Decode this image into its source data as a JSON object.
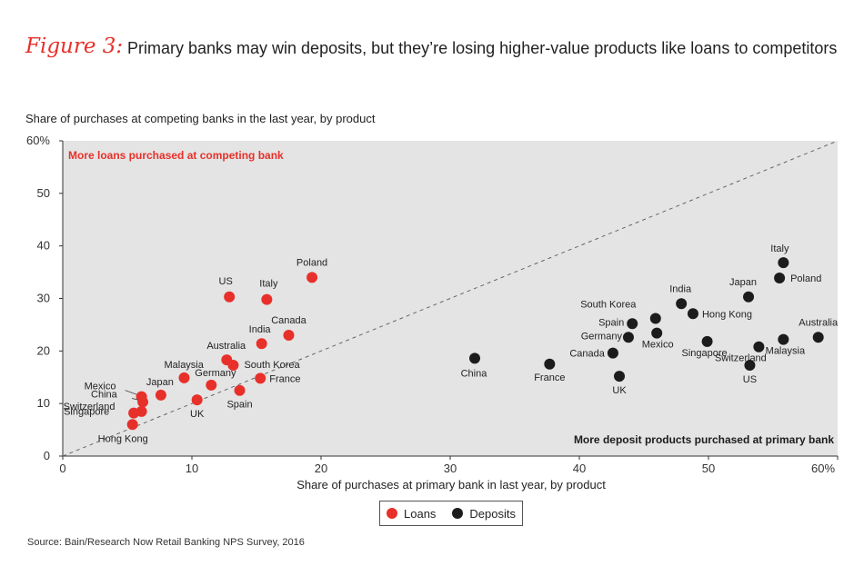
{
  "figure_label": "Figure 3:",
  "title": "Primary banks may win deposits, but they’re losing higher-value products like loans to competitors",
  "source": "Source: Bain/Research Now Retail Banking NPS Survey, 2016",
  "colors": {
    "loans": "#e8302a",
    "deposits": "#1c1c1c",
    "plot_bg": "#e4e4e4"
  },
  "chart_data": {
    "type": "scatter",
    "ylabel": "Share of purchases at competing banks in the last year, by product",
    "xlabel": "Share of purchases at primary bank in last year, by product",
    "xlim": [
      0,
      60
    ],
    "ylim": [
      0,
      60
    ],
    "x_ticks": [
      "0",
      "10",
      "20",
      "30",
      "40",
      "50",
      "60%"
    ],
    "y_ticks": [
      "0",
      "10",
      "20",
      "30",
      "40",
      "50",
      "60%"
    ],
    "annotation_top_left": "More loans purchased at competing bank",
    "annotation_bottom_right": "More deposit products purchased at primary bank",
    "reference_line": "y = x (dashed)",
    "legend_position": "bottom-center",
    "series": [
      {
        "name": "Loans",
        "points": [
          {
            "label": "Poland",
            "x": 19.3,
            "y": 34
          },
          {
            "label": "US",
            "x": 12.9,
            "y": 30.3
          },
          {
            "label": "Italy",
            "x": 15.8,
            "y": 29.8
          },
          {
            "label": "Canada",
            "x": 17.5,
            "y": 23
          },
          {
            "label": "India",
            "x": 15.4,
            "y": 21.4
          },
          {
            "label": "Australia",
            "x": 12.7,
            "y": 18.3
          },
          {
            "label": "South Korea",
            "x": 13.2,
            "y": 17.3
          },
          {
            "label": "France",
            "x": 15.3,
            "y": 14.8
          },
          {
            "label": "Germany",
            "x": 11.5,
            "y": 13.5
          },
          {
            "label": "Malaysia",
            "x": 9.4,
            "y": 14.9
          },
          {
            "label": "Spain",
            "x": 13.7,
            "y": 12.5
          },
          {
            "label": "UK",
            "x": 10.4,
            "y": 10.7
          },
          {
            "label": "Japan",
            "x": 7.6,
            "y": 11.6
          },
          {
            "label": "Mexico",
            "x": 6.1,
            "y": 11.3
          },
          {
            "label": "China",
            "x": 6.2,
            "y": 10.3
          },
          {
            "label": "Switzerland",
            "x": 6.1,
            "y": 8.5
          },
          {
            "label": "Singapore",
            "x": 5.5,
            "y": 8.2
          },
          {
            "label": "Hong Kong",
            "x": 5.4,
            "y": 6
          }
        ]
      },
      {
        "name": "Deposits",
        "points": [
          {
            "label": "Italy",
            "x": 55.8,
            "y": 36.8
          },
          {
            "label": "Poland",
            "x": 55.5,
            "y": 33.9
          },
          {
            "label": "Japan",
            "x": 53.1,
            "y": 30.3
          },
          {
            "label": "India",
            "x": 47.9,
            "y": 29
          },
          {
            "label": "Hong Kong",
            "x": 48.8,
            "y": 27.1
          },
          {
            "label": "South Korea",
            "x": 45.9,
            "y": 26.2
          },
          {
            "label": "Spain",
            "x": 44.1,
            "y": 25.2
          },
          {
            "label": "Singapore",
            "x": 49.9,
            "y": 21.8
          },
          {
            "label": "Mexico",
            "x": 46,
            "y": 23.4
          },
          {
            "label": "Germany",
            "x": 43.8,
            "y": 22.6
          },
          {
            "label": "Canada",
            "x": 42.6,
            "y": 19.6
          },
          {
            "label": "Australia",
            "x": 58.5,
            "y": 22.6
          },
          {
            "label": "Malaysia",
            "x": 55.8,
            "y": 22.2
          },
          {
            "label": "Switzerland",
            "x": 53.9,
            "y": 20.8
          },
          {
            "label": "US",
            "x": 53.2,
            "y": 17.3
          },
          {
            "label": "China",
            "x": 31.9,
            "y": 18.6
          },
          {
            "label": "France",
            "x": 37.7,
            "y": 17.5
          },
          {
            "label": "UK",
            "x": 43.1,
            "y": 15.2
          }
        ]
      }
    ]
  }
}
